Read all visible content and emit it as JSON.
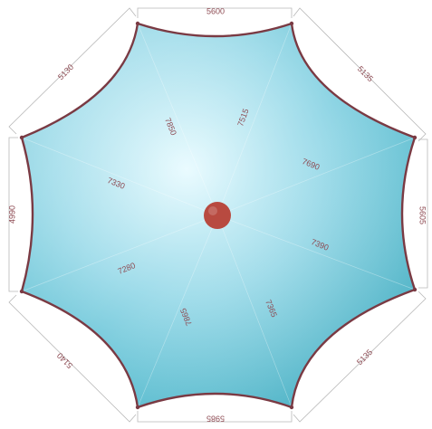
{
  "colors": {
    "membrane_light": "#e9fbff",
    "membrane_mid": "#9fdcea",
    "membrane_dark": "#3fb1c6",
    "edge_cable": "#7a3a43",
    "dimension_line": "#b9b9b9",
    "dimension_text": "#8d4a52",
    "center_post": "#b84a40"
  },
  "dimensions": {
    "top": "5600",
    "top_right": "5135",
    "right": "5605",
    "bottom_right": "5135",
    "bottom": "5985",
    "bottom_left": "5140",
    "left": "4990",
    "top_left": "5130"
  },
  "ribs": {
    "north": "7850",
    "north_northeast": "7515",
    "east_northeast": "7690",
    "east": "7390",
    "south": "7865",
    "south_southeast": "7365",
    "west_southwest": "7280",
    "west": "7330"
  }
}
